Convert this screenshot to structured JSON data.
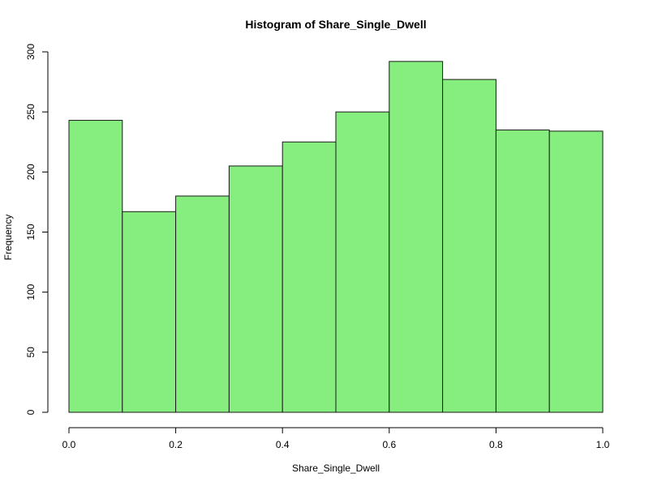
{
  "chart_data": {
    "type": "bar",
    "title": "Histogram of Share_Single_Dwell",
    "xlabel": "Share_Single_Dwell",
    "ylabel": "Frequency",
    "bins": [
      {
        "from": 0.0,
        "to": 0.1,
        "count": 243
      },
      {
        "from": 0.1,
        "to": 0.2,
        "count": 167
      },
      {
        "from": 0.2,
        "to": 0.3,
        "count": 180
      },
      {
        "from": 0.3,
        "to": 0.4,
        "count": 205
      },
      {
        "from": 0.4,
        "to": 0.5,
        "count": 225
      },
      {
        "from": 0.5,
        "to": 0.6,
        "count": 250
      },
      {
        "from": 0.6,
        "to": 0.7,
        "count": 292
      },
      {
        "from": 0.7,
        "to": 0.8,
        "count": 277
      },
      {
        "from": 0.8,
        "to": 0.9,
        "count": 235
      },
      {
        "from": 0.9,
        "to": 1.0,
        "count": 234
      }
    ],
    "xlim": [
      0.0,
      1.0
    ],
    "ylim": [
      0,
      300
    ],
    "xticks": [
      0.0,
      0.2,
      0.4,
      0.6,
      0.8,
      1.0
    ],
    "xtick_labels": [
      "0.0",
      "0.2",
      "0.4",
      "0.6",
      "0.8",
      "1.0"
    ],
    "yticks": [
      0,
      50,
      100,
      150,
      200,
      250,
      300
    ],
    "ytick_labels": [
      "0",
      "50",
      "100",
      "150",
      "200",
      "250",
      "300"
    ],
    "bar_color": "#86ee7f",
    "grid": false
  }
}
